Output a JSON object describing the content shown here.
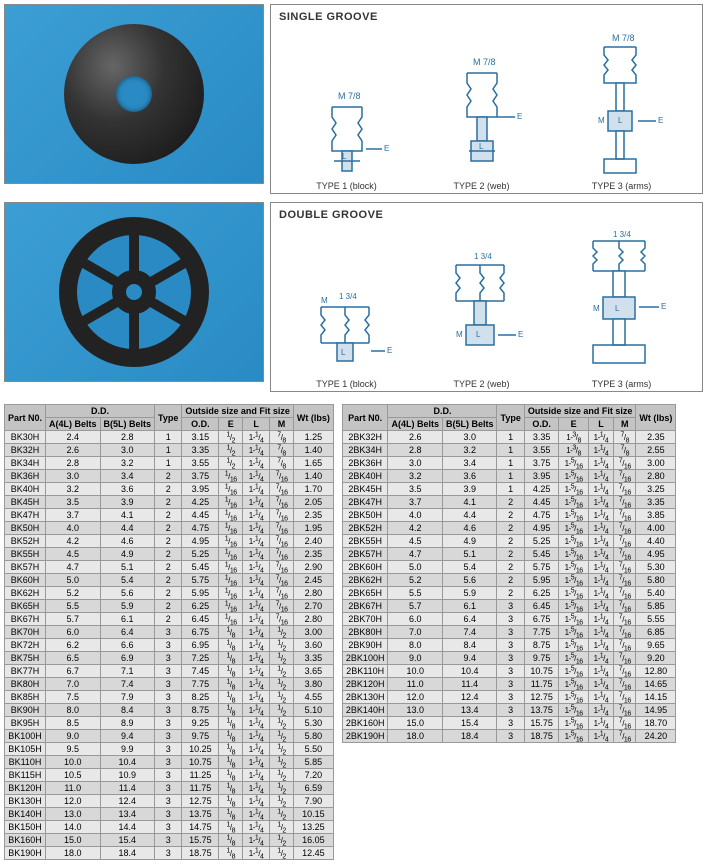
{
  "diagrams": {
    "single_title": "SINGLE GROOVE",
    "double_title": "DOUBLE GROOVE",
    "type1": "TYPE 1 (block)",
    "type2": "TYPE 2 (web)",
    "type3": "TYPE 3 (arms)",
    "labels": {
      "M": "M",
      "L": "L",
      "E": "E",
      "m78": "M 7/8",
      "m134": "1 3/4"
    }
  },
  "table_headers": {
    "part": "Part N0.",
    "dd": "D.D.",
    "a4l": "A(4L) Belts",
    "b5l": "B(5L) Belts",
    "type": "Type",
    "fit": "Outside size and Fit size",
    "od": "O.D.",
    "e": "E",
    "l": "L",
    "m": "M",
    "wt": "Wt (lbs)"
  },
  "table1": [
    [
      "BK30H",
      "2.4",
      "2.8",
      "1",
      "3.15",
      "1/2",
      "1-1/4",
      "7/8",
      "1.25"
    ],
    [
      "BK32H",
      "2.6",
      "3.0",
      "1",
      "3.35",
      "1/2",
      "1-1/4",
      "7/8",
      "1.40"
    ],
    [
      "BK34H",
      "2.8",
      "3.2",
      "1",
      "3.55",
      "1/2",
      "1-1/4",
      "7/8",
      "1.65"
    ],
    [
      "BK36H",
      "3.0",
      "3.4",
      "2",
      "3.75",
      "1/16",
      "1-1/4",
      "7/16",
      "1.40"
    ],
    [
      "BK40H",
      "3.2",
      "3.6",
      "2",
      "3.95",
      "1/16",
      "1-1/4",
      "7/16",
      "1.70"
    ],
    [
      "BK45H",
      "3.5",
      "3.9",
      "2",
      "4.25",
      "1/16",
      "1-1/4",
      "7/16",
      "2.05"
    ],
    [
      "BK47H",
      "3.7",
      "4.1",
      "2",
      "4.45",
      "1/16",
      "1-1/4",
      "7/16",
      "2.35"
    ],
    [
      "BK50H",
      "4.0",
      "4.4",
      "2",
      "4.75",
      "1/16",
      "1-1/4",
      "7/16",
      "1.95"
    ],
    [
      "BK52H",
      "4.2",
      "4.6",
      "2",
      "4.95",
      "1/16",
      "1-1/4",
      "7/16",
      "2.40"
    ],
    [
      "BK55H",
      "4.5",
      "4.9",
      "2",
      "5.25",
      "1/16",
      "1-1/4",
      "7/16",
      "2.35"
    ],
    [
      "BK57H",
      "4.7",
      "5.1",
      "2",
      "5.45",
      "1/16",
      "1-1/4",
      "7/16",
      "2.90"
    ],
    [
      "BK60H",
      "5.0",
      "5.4",
      "2",
      "5.75",
      "1/16",
      "1-1/4",
      "7/16",
      "2.45"
    ],
    [
      "BK62H",
      "5.2",
      "5.6",
      "2",
      "5.95",
      "1/16",
      "1-1/4",
      "7/16",
      "2.80"
    ],
    [
      "BK65H",
      "5.5",
      "5.9",
      "2",
      "6.25",
      "1/16",
      "1-1/4",
      "7/16",
      "2.70"
    ],
    [
      "BK67H",
      "5.7",
      "6.1",
      "2",
      "6.45",
      "1/16",
      "1-1/4",
      "7/16",
      "2.80"
    ],
    [
      "BK70H",
      "6.0",
      "6.4",
      "3",
      "6.75",
      "1/8",
      "1-1/4",
      "1/2",
      "3.00"
    ],
    [
      "BK72H",
      "6.2",
      "6.6",
      "3",
      "6.95",
      "1/8",
      "1-1/4",
      "1/2",
      "3.60"
    ],
    [
      "BK75H",
      "6.5",
      "6.9",
      "3",
      "7.25",
      "1/8",
      "1-1/4",
      "1/2",
      "3.35"
    ],
    [
      "BK77H",
      "6.7",
      "7.1",
      "3",
      "7.45",
      "1/8",
      "1-1/4",
      "1/2",
      "3.65"
    ],
    [
      "BK80H",
      "7.0",
      "7.4",
      "3",
      "7.75",
      "1/8",
      "1-1/4",
      "1/2",
      "3.80"
    ],
    [
      "BK85H",
      "7.5",
      "7.9",
      "3",
      "8.25",
      "1/8",
      "1-1/4",
      "1/2",
      "4.55"
    ],
    [
      "BK90H",
      "8.0",
      "8.4",
      "3",
      "8.75",
      "1/8",
      "1-1/4",
      "1/2",
      "5.10"
    ],
    [
      "BK95H",
      "8.5",
      "8.9",
      "3",
      "9.25",
      "1/8",
      "1-1/4",
      "1/2",
      "5.30"
    ],
    [
      "BK100H",
      "9.0",
      "9.4",
      "3",
      "9.75",
      "1/8",
      "1-1/4",
      "1/2",
      "5.80"
    ],
    [
      "BK105H",
      "9.5",
      "9.9",
      "3",
      "10.25",
      "1/8",
      "1-1/4",
      "1/2",
      "5.50"
    ],
    [
      "BK110H",
      "10.0",
      "10.4",
      "3",
      "10.75",
      "1/8",
      "1-1/4",
      "1/2",
      "5.85"
    ],
    [
      "BK115H",
      "10.5",
      "10.9",
      "3",
      "11.25",
      "1/8",
      "1-1/4",
      "1/2",
      "7.20"
    ],
    [
      "BK120H",
      "11.0",
      "11.4",
      "3",
      "11.75",
      "1/8",
      "1-1/4",
      "1/2",
      "6.59"
    ],
    [
      "BK130H",
      "12.0",
      "12.4",
      "3",
      "12.75",
      "1/8",
      "1-1/4",
      "1/2",
      "7.90"
    ],
    [
      "BK140H",
      "13.0",
      "13.4",
      "3",
      "13.75",
      "1/8",
      "1-1/4",
      "1/2",
      "10.15"
    ],
    [
      "BK150H",
      "14.0",
      "14.4",
      "3",
      "14.75",
      "1/8",
      "1-1/4",
      "1/2",
      "13.25"
    ],
    [
      "BK160H",
      "15.0",
      "15.4",
      "3",
      "15.75",
      "1/8",
      "1-1/4",
      "1/2",
      "16.05"
    ],
    [
      "BK190H",
      "18.0",
      "18.4",
      "3",
      "18.75",
      "1/8",
      "1-1/4",
      "1/2",
      "12.45"
    ]
  ],
  "table2": [
    [
      "2BK32H",
      "2.6",
      "3.0",
      "1",
      "3.35",
      "1-3/8",
      "1-1/4",
      "7/8",
      "2.35"
    ],
    [
      "2BK34H",
      "2.8",
      "3.2",
      "1",
      "3.55",
      "1-3/8",
      "1-1/4",
      "7/8",
      "2.55"
    ],
    [
      "2BK36H",
      "3.0",
      "3.4",
      "1",
      "3.75",
      "1-5/16",
      "1-1/4",
      "7/16",
      "3.00"
    ],
    [
      "2BK40H",
      "3.2",
      "3.6",
      "1",
      "3.95",
      "1-5/16",
      "1-1/4",
      "7/16",
      "2.80"
    ],
    [
      "2BK45H",
      "3.5",
      "3.9",
      "1",
      "4.25",
      "1-5/16",
      "1-1/4",
      "7/16",
      "3.25"
    ],
    [
      "2BK47H",
      "3.7",
      "4.1",
      "2",
      "4.45",
      "1-5/16",
      "1-1/4",
      "7/16",
      "3.35"
    ],
    [
      "2BK50H",
      "4.0",
      "4.4",
      "2",
      "4.75",
      "1-5/16",
      "1-1/4",
      "7/16",
      "3.85"
    ],
    [
      "2BK52H",
      "4.2",
      "4.6",
      "2",
      "4.95",
      "1-5/16",
      "1-1/4",
      "7/16",
      "4.00"
    ],
    [
      "2BK55H",
      "4.5",
      "4.9",
      "2",
      "5.25",
      "1-5/16",
      "1-1/4",
      "7/16",
      "4.40"
    ],
    [
      "2BK57H",
      "4.7",
      "5.1",
      "2",
      "5.45",
      "1-5/16",
      "1-1/4",
      "7/16",
      "4.95"
    ],
    [
      "2BK60H",
      "5.0",
      "5.4",
      "2",
      "5.75",
      "1-5/16",
      "1-1/4",
      "7/16",
      "5.30"
    ],
    [
      "2BK62H",
      "5.2",
      "5.6",
      "2",
      "5.95",
      "1-5/16",
      "1-1/4",
      "7/16",
      "5.80"
    ],
    [
      "2BK65H",
      "5.5",
      "5.9",
      "2",
      "6.25",
      "1-5/16",
      "1-1/4",
      "7/16",
      "5.40"
    ],
    [
      "2BK67H",
      "5.7",
      "6.1",
      "3",
      "6.45",
      "1-5/16",
      "1-1/4",
      "7/16",
      "5.85"
    ],
    [
      "2BK70H",
      "6.0",
      "6.4",
      "3",
      "6.75",
      "1-5/16",
      "1-1/4",
      "7/16",
      "5.55"
    ],
    [
      "2BK80H",
      "7.0",
      "7.4",
      "3",
      "7.75",
      "1-5/16",
      "1-1/4",
      "7/16",
      "6.85"
    ],
    [
      "2BK90H",
      "8.0",
      "8.4",
      "3",
      "8.75",
      "1-5/16",
      "1-1/4",
      "7/16",
      "9.65"
    ],
    [
      "2BK100H",
      "9.0",
      "9.4",
      "3",
      "9.75",
      "1-5/16",
      "1-1/4",
      "7/16",
      "9.20"
    ],
    [
      "2BK110H",
      "10.0",
      "10.4",
      "3",
      "10.75",
      "1-5/16",
      "1-1/4",
      "7/16",
      "12.80"
    ],
    [
      "2BK120H",
      "11.0",
      "11.4",
      "3",
      "11.75",
      "1-5/16",
      "1-1/4",
      "7/16",
      "14.65"
    ],
    [
      "2BK130H",
      "12.0",
      "12.4",
      "3",
      "12.75",
      "1-5/16",
      "1-1/4",
      "7/16",
      "14.15"
    ],
    [
      "2BK140H",
      "13.0",
      "13.4",
      "3",
      "13.75",
      "1-5/16",
      "1-1/4",
      "7/16",
      "14.95"
    ],
    [
      "2BK160H",
      "15.0",
      "15.4",
      "3",
      "15.75",
      "1-5/16",
      "1-1/4",
      "7/16",
      "18.70"
    ],
    [
      "2BK190H",
      "18.0",
      "18.4",
      "3",
      "18.75",
      "1-5/16",
      "1-1/4",
      "7/16",
      "24.20"
    ]
  ],
  "svg_colors": {
    "stroke": "#2a6fa0",
    "fill": "none"
  }
}
